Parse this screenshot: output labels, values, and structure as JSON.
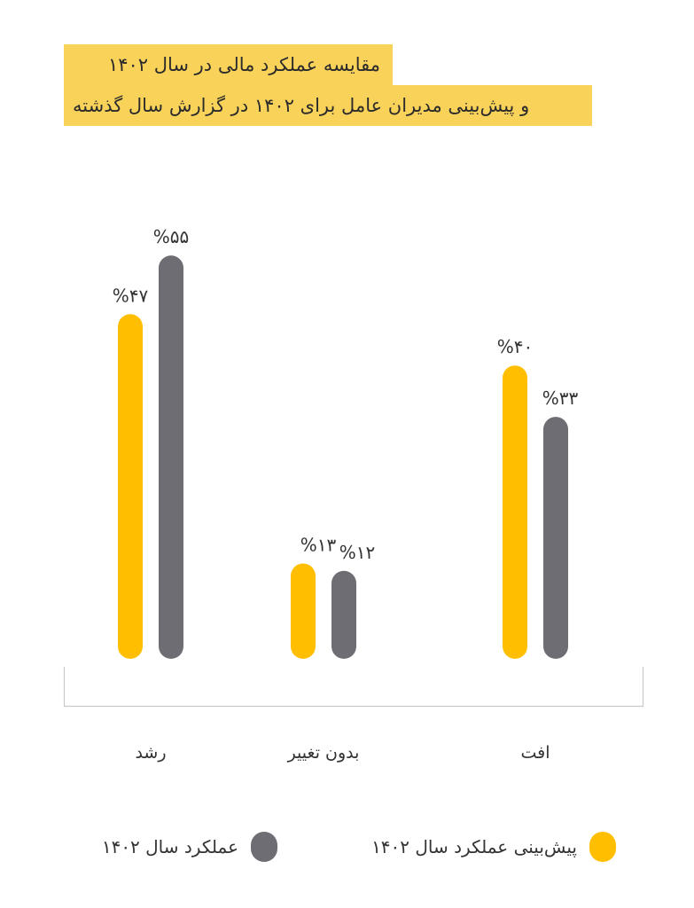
{
  "chart_data": {
    "type": "bar",
    "title_line1": "مقایسه عملکرد مالی در سال ۱۴۰۲",
    "title_line2": "و پیش‌بینی مدیران عامل برای ۱۴۰۲ در گزارش سال گذشته",
    "categories": [
      "رشد",
      "بدون تغییر",
      "افت"
    ],
    "series": [
      {
        "name": "پیش‌بینی عملکرد سال ۱۴۰۲",
        "color": "#FFBE00",
        "values": [
          47,
          13,
          40
        ],
        "labels": [
          "%۴۷",
          "%۱۳",
          "%۴۰"
        ]
      },
      {
        "name": "عملکرد سال ۱۴۰۲",
        "color": "#6E6D73",
        "values": [
          55,
          12,
          33
        ],
        "labels": [
          "%۵۵",
          "%۱۲",
          "%۳۳"
        ]
      }
    ],
    "ylim": [
      0,
      60
    ],
    "grid": false,
    "legend_position": "bottom"
  }
}
